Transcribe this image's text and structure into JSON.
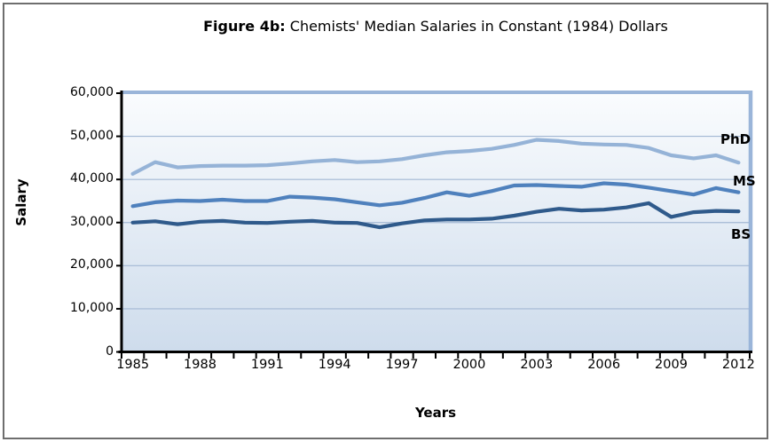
{
  "figure": {
    "title_bold": "Figure 4b:",
    "title_rest": " Chemists' Median Salaries in Constant (1984) Dollars"
  },
  "axes": {
    "y_title": "Salary",
    "x_title": "Years",
    "y_tick_labels": [
      "60,000",
      "50,000",
      "40,000",
      "30,000",
      "20,000",
      "10,000",
      "0"
    ],
    "y_tick_values": [
      60000,
      50000,
      40000,
      30000,
      20000,
      10000,
      0
    ],
    "x_tick_labels": [
      "1985",
      "1988",
      "1991",
      "1994",
      "1997",
      "2000",
      "2003",
      "2006",
      "2009",
      "2012"
    ]
  },
  "colors": {
    "phd_line": "#95b3d7",
    "ms_line": "#4f81bd",
    "bs_line": "#2f5a8b",
    "gridline": "#a3b8d4",
    "plot_border": "#9ab5d9",
    "plot_bg_top": "#fafcfe",
    "plot_bg_bottom": "#cedcec",
    "axis": "#000000",
    "frame_border": "#6e6e6e"
  },
  "chart_data": {
    "type": "line",
    "title": "Figure 4b: Chemists' Median Salaries in Constant (1984) Dollars",
    "xlabel": "Years",
    "ylabel": "Salary",
    "ylim": [
      0,
      60000
    ],
    "y_gridline_step": 10000,
    "grid": true,
    "legend_position": "right-inline-labels",
    "x": [
      1985,
      1986,
      1987,
      1988,
      1989,
      1990,
      1991,
      1992,
      1993,
      1994,
      1995,
      1996,
      1997,
      1998,
      1999,
      2000,
      2001,
      2002,
      2003,
      2004,
      2005,
      2006,
      2007,
      2008,
      2009,
      2010,
      2011,
      2012
    ],
    "series": [
      {
        "name": "PhD",
        "color": "#95b3d7",
        "values": [
          41300,
          44000,
          42800,
          43100,
          43200,
          43200,
          43300,
          43700,
          44200,
          44500,
          44000,
          44200,
          44700,
          45600,
          46300,
          46600,
          47100,
          48000,
          49200,
          48900,
          48300,
          48100,
          48000,
          47300,
          45600,
          44900,
          45600,
          43900
        ]
      },
      {
        "name": "MS",
        "color": "#4f81bd",
        "values": [
          33800,
          34700,
          35100,
          35000,
          35300,
          35000,
          35000,
          36000,
          35800,
          35400,
          34700,
          34000,
          34600,
          35700,
          37000,
          36200,
          37300,
          38600,
          38700,
          38500,
          38300,
          39100,
          38800,
          38100,
          37300,
          36500,
          38000,
          37000
        ]
      },
      {
        "name": "BS",
        "color": "#2f5a8b",
        "values": [
          30000,
          30300,
          29600,
          30200,
          30400,
          30000,
          29900,
          30200,
          30400,
          30000,
          29900,
          28900,
          29800,
          30500,
          30700,
          30700,
          30900,
          31600,
          32500,
          33200,
          32800,
          33000,
          33500,
          34500,
          31300,
          32400,
          32700,
          32600
        ]
      }
    ]
  }
}
